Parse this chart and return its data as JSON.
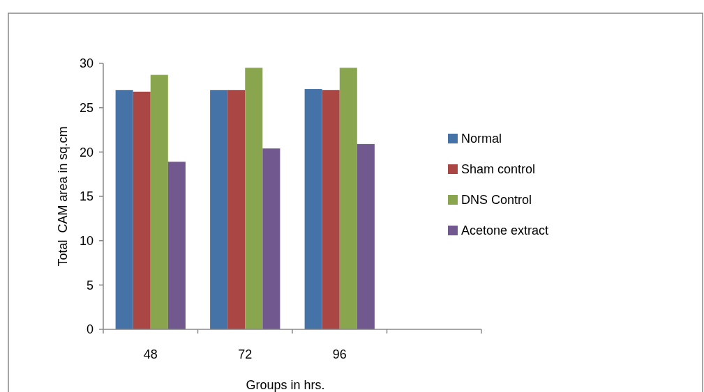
{
  "chart_data": {
    "type": "bar",
    "xlabel": "Groups in hrs.",
    "ylabel": "Total  CAM area in sq.cm",
    "categories": [
      "48",
      "72",
      "96",
      null
    ],
    "series": [
      {
        "name": "Normal",
        "color": "#4572a7",
        "values": [
          27,
          27,
          27.1,
          null
        ]
      },
      {
        "name": "Sham control",
        "color": "#aa4643",
        "values": [
          26.8,
          27,
          27,
          null
        ]
      },
      {
        "name": "DNS Control",
        "color": "#89a54e",
        "values": [
          28.7,
          29.5,
          29.5,
          null
        ]
      },
      {
        "name": "Acetone extract",
        "color": "#71588f",
        "values": [
          18.9,
          20.4,
          20.9,
          null
        ]
      }
    ],
    "ylim": [
      0,
      30
    ],
    "yticks": [
      0,
      5,
      10,
      15,
      20,
      25,
      30
    ],
    "grid": false,
    "legend": "right"
  }
}
